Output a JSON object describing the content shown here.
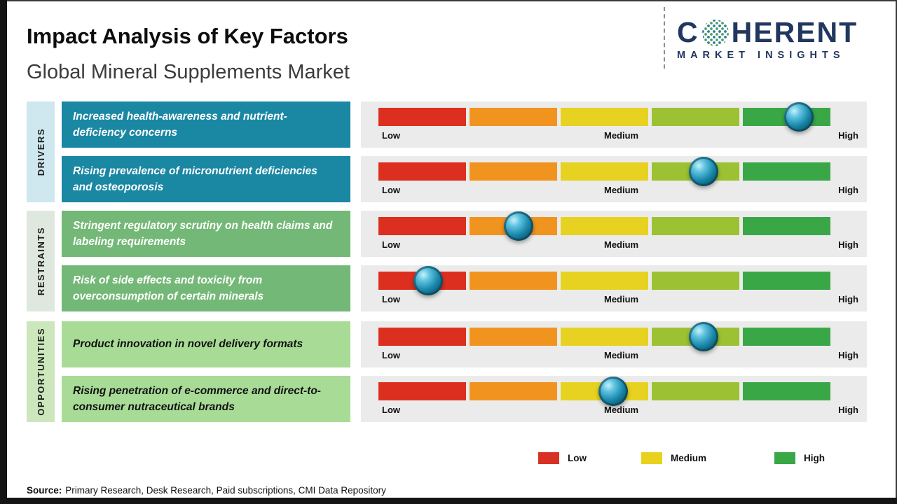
{
  "header": {
    "title": "Impact Analysis of Key Factors",
    "subtitle": "Global Mineral Supplements Market",
    "logo": {
      "name_prefix": "C",
      "name_suffix": "HERENT",
      "tagline": "MARKET INSIGHTS",
      "color": "#21375f"
    }
  },
  "groups": [
    {
      "label": "DRIVERS",
      "strip_color": "#cfe7ef",
      "box_color": "#1a87a3",
      "box_text_color": "#ffffff"
    },
    {
      "label": "RESTRAINTS",
      "strip_color": "#dfe8df",
      "box_color": "#74b877",
      "box_text_color": "#ffffff"
    },
    {
      "label": "OPPORTUNITIES",
      "strip_color": "#cde7bc",
      "box_color": "#a8dc96",
      "box_text_color": "#111111"
    }
  ],
  "rows": [
    {
      "text": "Increased health-awareness and nutrient-deficiency concerns",
      "group": 0,
      "impact_percent": 93
    },
    {
      "text": "Rising prevalence of micronutrient deficiencies and osteoporosis",
      "group": 0,
      "impact_percent": 72
    },
    {
      "text": "Stringent regulatory scrutiny on health claims and labeling requirements",
      "group": 1,
      "impact_percent": 31
    },
    {
      "text": "Risk of side effects and toxicity from overconsumption of certain minerals",
      "group": 1,
      "impact_percent": 11
    },
    {
      "text": "Product innovation in novel delivery formats",
      "group": 2,
      "impact_percent": 72
    },
    {
      "text": "Rising penetration of e-commerce and direct-to-consumer nutraceutical brands",
      "group": 2,
      "impact_percent": 52
    }
  ],
  "scale_labels": {
    "low": "Low",
    "medium": "Medium",
    "high": "High"
  },
  "legend": [
    {
      "label": "Low",
      "color": "#d93025"
    },
    {
      "label": "Medium",
      "color": "#e8d21f"
    },
    {
      "label": "High",
      "color": "#3aa747"
    }
  ],
  "source": {
    "label": "Source:",
    "text": "Primary Research, Desk Research, Paid subscriptions, CMI Data Repository"
  },
  "chart_data": {
    "type": "bar",
    "title": "Impact Analysis of Key Factors",
    "subtitle": "Global Mineral Supplements Market",
    "categories": [
      "Increased health-awareness and nutrient-deficiency concerns",
      "Rising prevalence of micronutrient deficiencies and osteoporosis",
      "Stringent regulatory scrutiny on health claims and labeling requirements",
      "Risk of side effects and toxicity from overconsumption of certain minerals",
      "Product innovation in novel delivery formats",
      "Rising penetration of e-commerce and direct-to-consumer nutraceutical brands"
    ],
    "series_groups": [
      "Drivers",
      "Drivers",
      "Restraints",
      "Restraints",
      "Opportunities",
      "Opportunities"
    ],
    "values": [
      93,
      72,
      31,
      11,
      72,
      52
    ],
    "value_scale": {
      "range": [
        0,
        100
      ],
      "tick_labels": [
        "Low",
        "Medium",
        "High"
      ]
    },
    "segment_colors": [
      "#dd2f1f",
      "#f0941f",
      "#e7d221",
      "#9cc234",
      "#3aa747"
    ],
    "marker_color": "#1583a6",
    "legend_position": "bottom"
  }
}
